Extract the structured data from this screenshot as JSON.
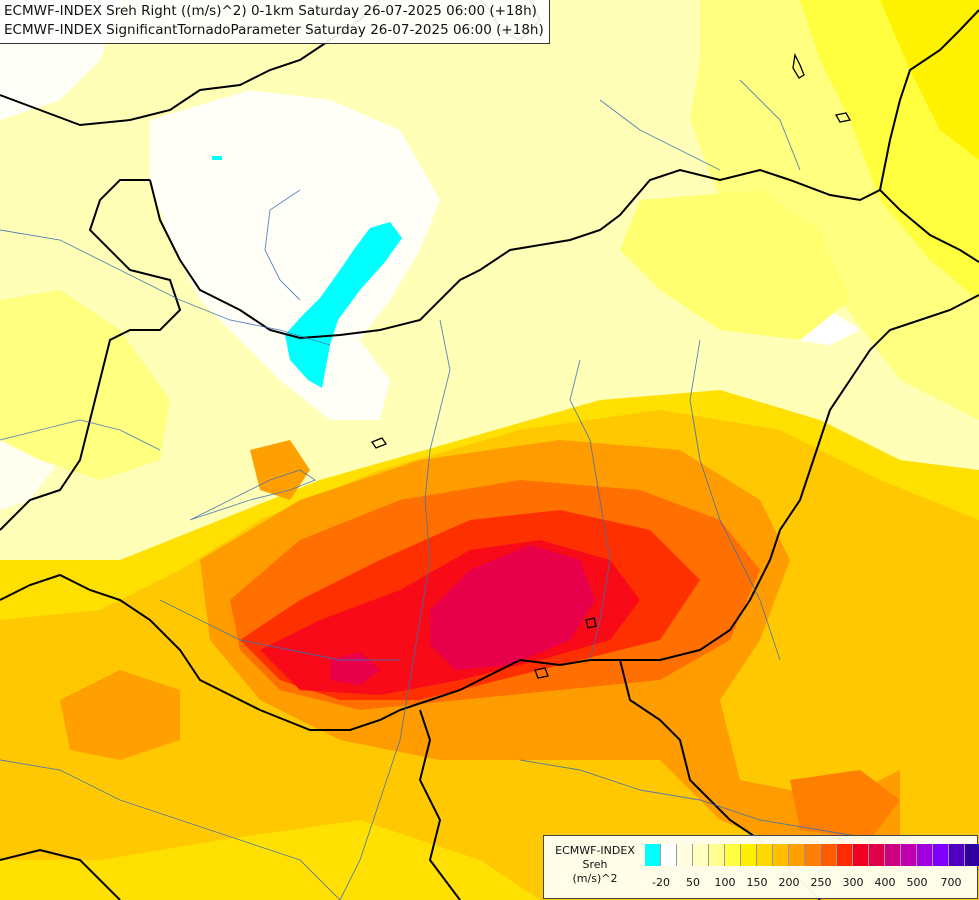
{
  "header": {
    "line1": "ECMWF-INDEX Sreh Right ((m/s)^2) 0-1km Saturday 26-07-2025 06:00 (+18h)",
    "line2": "ECMWF-INDEX SignificantTornadoParameter Saturday 26-07-2025 06:00 (+18h)"
  },
  "legend": {
    "source": "ECMWF-INDEX",
    "variable": "Sreh",
    "unit": "(m/s)^2",
    "colors": [
      "#00ffff",
      "#ffffff",
      "#fffde0",
      "#ffffc0",
      "#ffff90",
      "#ffff40",
      "#fff000",
      "#ffd800",
      "#ffbe00",
      "#ffa000",
      "#ff8000",
      "#ff5a00",
      "#ff2a00",
      "#f00020",
      "#e0004a",
      "#cc0080",
      "#c000b0",
      "#a000e0",
      "#8000ff",
      "#5000c0",
      "#3000a0",
      "#100080"
    ],
    "ticks": [
      "-20",
      "50",
      "100",
      "150",
      "200",
      "250",
      "300",
      "400",
      "500",
      "700"
    ]
  }
}
